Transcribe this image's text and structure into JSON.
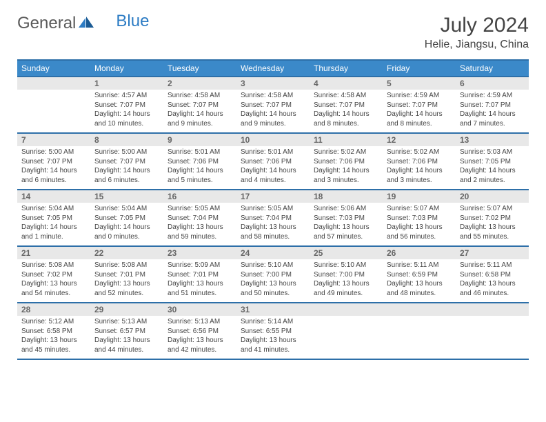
{
  "logo": {
    "text1": "General",
    "text2": "Blue"
  },
  "title": "July 2024",
  "location": "Helie, Jiangsu, China",
  "colors": {
    "header_bg": "#3b89c9",
    "border": "#2d6fa8",
    "daynum_bg": "#e8e8e8",
    "text": "#444444"
  },
  "dayNames": [
    "Sunday",
    "Monday",
    "Tuesday",
    "Wednesday",
    "Thursday",
    "Friday",
    "Saturday"
  ],
  "weeks": [
    [
      {
        "num": "",
        "lines": [
          "",
          "",
          "",
          ""
        ]
      },
      {
        "num": "1",
        "lines": [
          "Sunrise: 4:57 AM",
          "Sunset: 7:07 PM",
          "Daylight: 14 hours",
          "and 10 minutes."
        ]
      },
      {
        "num": "2",
        "lines": [
          "Sunrise: 4:58 AM",
          "Sunset: 7:07 PM",
          "Daylight: 14 hours",
          "and 9 minutes."
        ]
      },
      {
        "num": "3",
        "lines": [
          "Sunrise: 4:58 AM",
          "Sunset: 7:07 PM",
          "Daylight: 14 hours",
          "and 9 minutes."
        ]
      },
      {
        "num": "4",
        "lines": [
          "Sunrise: 4:58 AM",
          "Sunset: 7:07 PM",
          "Daylight: 14 hours",
          "and 8 minutes."
        ]
      },
      {
        "num": "5",
        "lines": [
          "Sunrise: 4:59 AM",
          "Sunset: 7:07 PM",
          "Daylight: 14 hours",
          "and 8 minutes."
        ]
      },
      {
        "num": "6",
        "lines": [
          "Sunrise: 4:59 AM",
          "Sunset: 7:07 PM",
          "Daylight: 14 hours",
          "and 7 minutes."
        ]
      }
    ],
    [
      {
        "num": "7",
        "lines": [
          "Sunrise: 5:00 AM",
          "Sunset: 7:07 PM",
          "Daylight: 14 hours",
          "and 6 minutes."
        ]
      },
      {
        "num": "8",
        "lines": [
          "Sunrise: 5:00 AM",
          "Sunset: 7:07 PM",
          "Daylight: 14 hours",
          "and 6 minutes."
        ]
      },
      {
        "num": "9",
        "lines": [
          "Sunrise: 5:01 AM",
          "Sunset: 7:06 PM",
          "Daylight: 14 hours",
          "and 5 minutes."
        ]
      },
      {
        "num": "10",
        "lines": [
          "Sunrise: 5:01 AM",
          "Sunset: 7:06 PM",
          "Daylight: 14 hours",
          "and 4 minutes."
        ]
      },
      {
        "num": "11",
        "lines": [
          "Sunrise: 5:02 AM",
          "Sunset: 7:06 PM",
          "Daylight: 14 hours",
          "and 3 minutes."
        ]
      },
      {
        "num": "12",
        "lines": [
          "Sunrise: 5:02 AM",
          "Sunset: 7:06 PM",
          "Daylight: 14 hours",
          "and 3 minutes."
        ]
      },
      {
        "num": "13",
        "lines": [
          "Sunrise: 5:03 AM",
          "Sunset: 7:05 PM",
          "Daylight: 14 hours",
          "and 2 minutes."
        ]
      }
    ],
    [
      {
        "num": "14",
        "lines": [
          "Sunrise: 5:04 AM",
          "Sunset: 7:05 PM",
          "Daylight: 14 hours",
          "and 1 minute."
        ]
      },
      {
        "num": "15",
        "lines": [
          "Sunrise: 5:04 AM",
          "Sunset: 7:05 PM",
          "Daylight: 14 hours",
          "and 0 minutes."
        ]
      },
      {
        "num": "16",
        "lines": [
          "Sunrise: 5:05 AM",
          "Sunset: 7:04 PM",
          "Daylight: 13 hours",
          "and 59 minutes."
        ]
      },
      {
        "num": "17",
        "lines": [
          "Sunrise: 5:05 AM",
          "Sunset: 7:04 PM",
          "Daylight: 13 hours",
          "and 58 minutes."
        ]
      },
      {
        "num": "18",
        "lines": [
          "Sunrise: 5:06 AM",
          "Sunset: 7:03 PM",
          "Daylight: 13 hours",
          "and 57 minutes."
        ]
      },
      {
        "num": "19",
        "lines": [
          "Sunrise: 5:07 AM",
          "Sunset: 7:03 PM",
          "Daylight: 13 hours",
          "and 56 minutes."
        ]
      },
      {
        "num": "20",
        "lines": [
          "Sunrise: 5:07 AM",
          "Sunset: 7:02 PM",
          "Daylight: 13 hours",
          "and 55 minutes."
        ]
      }
    ],
    [
      {
        "num": "21",
        "lines": [
          "Sunrise: 5:08 AM",
          "Sunset: 7:02 PM",
          "Daylight: 13 hours",
          "and 54 minutes."
        ]
      },
      {
        "num": "22",
        "lines": [
          "Sunrise: 5:08 AM",
          "Sunset: 7:01 PM",
          "Daylight: 13 hours",
          "and 52 minutes."
        ]
      },
      {
        "num": "23",
        "lines": [
          "Sunrise: 5:09 AM",
          "Sunset: 7:01 PM",
          "Daylight: 13 hours",
          "and 51 minutes."
        ]
      },
      {
        "num": "24",
        "lines": [
          "Sunrise: 5:10 AM",
          "Sunset: 7:00 PM",
          "Daylight: 13 hours",
          "and 50 minutes."
        ]
      },
      {
        "num": "25",
        "lines": [
          "Sunrise: 5:10 AM",
          "Sunset: 7:00 PM",
          "Daylight: 13 hours",
          "and 49 minutes."
        ]
      },
      {
        "num": "26",
        "lines": [
          "Sunrise: 5:11 AM",
          "Sunset: 6:59 PM",
          "Daylight: 13 hours",
          "and 48 minutes."
        ]
      },
      {
        "num": "27",
        "lines": [
          "Sunrise: 5:11 AM",
          "Sunset: 6:58 PM",
          "Daylight: 13 hours",
          "and 46 minutes."
        ]
      }
    ],
    [
      {
        "num": "28",
        "lines": [
          "Sunrise: 5:12 AM",
          "Sunset: 6:58 PM",
          "Daylight: 13 hours",
          "and 45 minutes."
        ]
      },
      {
        "num": "29",
        "lines": [
          "Sunrise: 5:13 AM",
          "Sunset: 6:57 PM",
          "Daylight: 13 hours",
          "and 44 minutes."
        ]
      },
      {
        "num": "30",
        "lines": [
          "Sunrise: 5:13 AM",
          "Sunset: 6:56 PM",
          "Daylight: 13 hours",
          "and 42 minutes."
        ]
      },
      {
        "num": "31",
        "lines": [
          "Sunrise: 5:14 AM",
          "Sunset: 6:55 PM",
          "Daylight: 13 hours",
          "and 41 minutes."
        ]
      },
      {
        "num": "",
        "lines": [
          "",
          "",
          "",
          ""
        ]
      },
      {
        "num": "",
        "lines": [
          "",
          "",
          "",
          ""
        ]
      },
      {
        "num": "",
        "lines": [
          "",
          "",
          "",
          ""
        ]
      }
    ]
  ]
}
